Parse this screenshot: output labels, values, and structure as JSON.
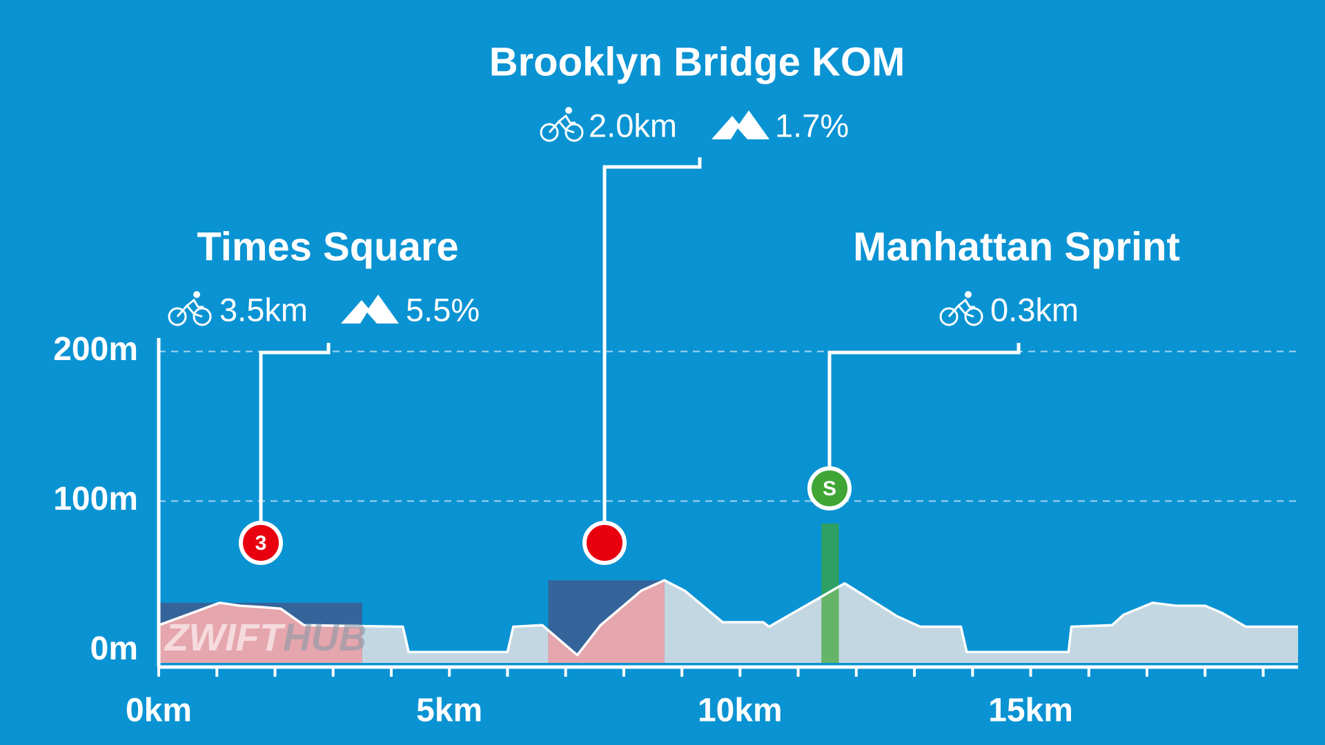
{
  "chart_data": {
    "type": "area",
    "x": [
      0,
      1.05,
      1.4,
      1.8,
      2.1,
      2.5,
      4.2,
      4.3,
      6.0,
      6.1,
      6.6,
      7.2,
      7.6,
      8.3,
      8.7,
      9.05,
      9.7,
      10.4,
      10.5,
      11.8,
      12.7,
      13.1,
      13.8,
      13.9,
      15.65,
      15.7,
      16.4,
      16.6,
      17.1,
      17.5,
      18.0,
      18.3,
      18.7,
      19.6
    ],
    "values": [
      17,
      32,
      30,
      29,
      28,
      17,
      16,
      -1,
      -1,
      16,
      17,
      -3,
      17,
      40,
      47,
      40,
      19,
      19,
      16,
      45,
      23,
      16,
      16,
      -1,
      -1,
      16,
      17,
      24,
      32,
      30,
      30,
      25,
      16,
      16
    ],
    "color": "#c3d7e2",
    "xlim": [
      0,
      19.6
    ],
    "ylim": [
      -11,
      209
    ],
    "xticks": [
      {
        "value": 0,
        "label": "0km"
      },
      {
        "value": 5,
        "label": "5km"
      },
      {
        "value": 10,
        "label": "10km"
      },
      {
        "value": 15,
        "label": "15km"
      }
    ],
    "minor_xticks": [
      1,
      2,
      3,
      4,
      6,
      7,
      8,
      9,
      11,
      12,
      13,
      14,
      16,
      17,
      18,
      19
    ],
    "yticks": [
      {
        "value": 0,
        "label": "0m"
      },
      {
        "value": 100,
        "label": "100m"
      },
      {
        "value": 200,
        "label": "200m"
      }
    ],
    "grid": true,
    "segments": [
      {
        "name": "Times Square",
        "length": "3.5km",
        "grade": "5.5%",
        "marker": "3",
        "start": 0,
        "end": 3.5,
        "color": "#e8000f"
      },
      {
        "name": "Brooklyn Bridge KOM",
        "length": "2.0km",
        "grade": "1.7%",
        "start": 6.7,
        "end": 8.7,
        "color": "#e8000f"
      },
      {
        "name": "Manhattan Sprint",
        "length": "0.3km",
        "marker": "S",
        "start": 11.4,
        "end": 11.7,
        "color": "#3fa535"
      }
    ],
    "watermark": [
      "ZWIFT",
      "HUB"
    ]
  }
}
